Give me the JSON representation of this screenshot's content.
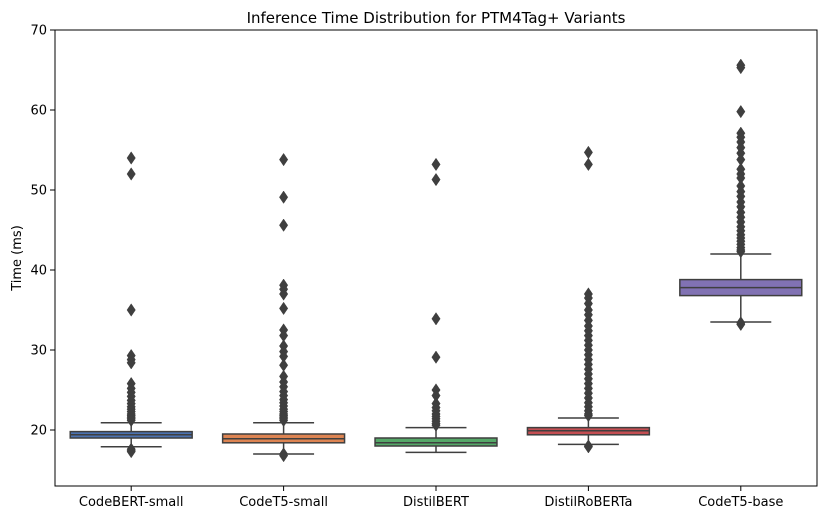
{
  "chart_data": {
    "type": "box",
    "title": "Inference Time Distribution for PTM4Tag+ Variants",
    "xlabel": "",
    "ylabel": "Time (ms)",
    "ylim": [
      13,
      70
    ],
    "yticks": [
      20,
      30,
      40,
      50,
      60,
      70
    ],
    "grid": false,
    "categories": [
      "CodeBERT-small",
      "CodeT5-small",
      "DistilBERT",
      "DistilRoBERTa",
      "CodeT5-base"
    ],
    "colors": [
      "#4c72b0",
      "#dd8452",
      "#55a868",
      "#c44e52",
      "#8172b3"
    ],
    "series": [
      {
        "name": "CodeBERT-small",
        "whisker_low": 17.9,
        "q1": 19.0,
        "median": 19.4,
        "q3": 19.8,
        "whisker_high": 20.9,
        "outliers": [
          54.0,
          52.0,
          35.0,
          29.3,
          28.8,
          28.4,
          25.8,
          25.2,
          24.7,
          24.2,
          23.7,
          23.3,
          22.9,
          22.6,
          22.3,
          22.0,
          21.8,
          21.6,
          21.4,
          21.2,
          17.6,
          17.4,
          17.3
        ]
      },
      {
        "name": "CodeT5-small",
        "whisker_low": 17.0,
        "q1": 18.4,
        "median": 18.9,
        "q3": 19.5,
        "whisker_high": 20.9,
        "outliers": [
          53.8,
          49.1,
          45.6,
          38.1,
          37.6,
          37.0,
          35.2,
          32.5,
          31.8,
          30.5,
          29.8,
          29.2,
          28.1,
          26.7,
          26.0,
          25.4,
          24.8,
          24.3,
          23.8,
          23.4,
          23.0,
          22.6,
          22.3,
          22.0,
          21.8,
          21.6,
          21.4,
          21.2,
          17.0,
          16.8
        ]
      },
      {
        "name": "DistilBERT",
        "whisker_low": 17.2,
        "q1": 18.0,
        "median": 18.4,
        "q3": 19.0,
        "whisker_high": 20.3,
        "outliers": [
          53.2,
          51.3,
          33.9,
          29.1,
          25.0,
          24.3,
          23.3,
          22.8,
          22.4,
          22.0,
          21.7,
          21.4,
          21.1,
          20.8,
          20.6
        ]
      },
      {
        "name": "DistilRoBERTa",
        "whisker_low": 18.2,
        "q1": 19.4,
        "median": 19.9,
        "q3": 20.3,
        "whisker_high": 21.5,
        "outliers": [
          54.7,
          53.2,
          37.0,
          36.5,
          35.8,
          35.0,
          34.4,
          33.7,
          33.0,
          32.4,
          31.8,
          31.2,
          30.6,
          30.0,
          29.4,
          28.8,
          28.2,
          27.6,
          27.0,
          26.4,
          25.8,
          25.2,
          24.6,
          24.0,
          23.4,
          22.9,
          22.4,
          22.0,
          21.8,
          18.0,
          17.9
        ]
      },
      {
        "name": "CodeT5-base",
        "whisker_low": 33.5,
        "q1": 36.8,
        "median": 37.8,
        "q3": 38.8,
        "whisker_high": 42.0,
        "outliers": [
          65.6,
          65.3,
          59.8,
          57.1,
          56.6,
          56.0,
          55.3,
          54.6,
          53.8,
          52.6,
          52.0,
          51.5,
          50.5,
          49.8,
          49.2,
          48.5,
          47.9,
          47.2,
          46.6,
          46.0,
          45.4,
          44.9,
          44.4,
          44.0,
          43.6,
          43.2,
          42.8,
          42.5,
          42.3,
          33.4,
          33.2
        ]
      }
    ]
  }
}
